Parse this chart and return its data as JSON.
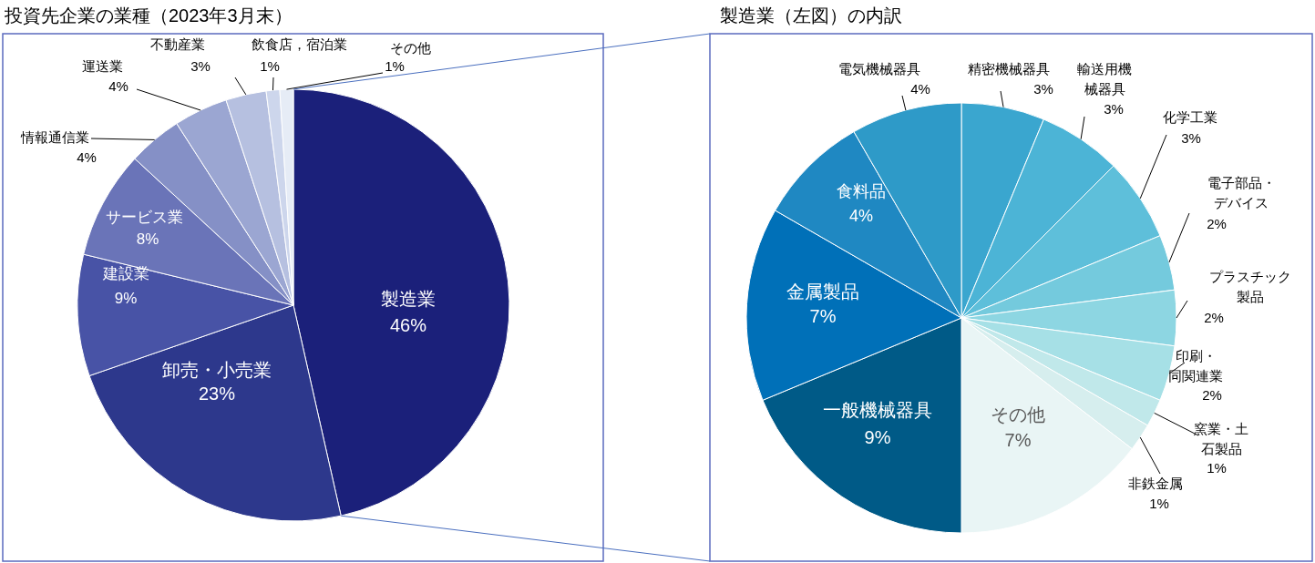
{
  "chart_data": [
    {
      "type": "pie",
      "title": "投資先企業の業種（2023年3月末）",
      "categories": [
        "製造業",
        "卸売・小売業",
        "建設業",
        "サービス業",
        "情報通信業",
        "運送業",
        "不動産業",
        "飲食店，宿泊業",
        "その他"
      ],
      "values": [
        46,
        23,
        9,
        8,
        4,
        4,
        3,
        1,
        1
      ],
      "value_labels": [
        "46%",
        "23%",
        "9%",
        "8%",
        "4%",
        "4%",
        "3%",
        "1%",
        "1%"
      ],
      "colors": [
        "#1b207a",
        "#2d388c",
        "#4853a6",
        "#6a74b8",
        "#8590c6",
        "#9ba6d2",
        "#b6c0e0",
        "#cdd6ec",
        "#e6ecf6"
      ]
    },
    {
      "type": "pie",
      "title": "製造業（左図）の内訳",
      "categories": [
        "精密機械器具",
        "輸送用機械器具",
        "化学工業",
        "電子部品・デバイス",
        "プラスチック製品",
        "印刷・同関連業",
        "窯業・土石製品",
        "非鉄金属",
        "その他",
        "一般機械器具",
        "金属製品",
        "食料品",
        "電気機械器具"
      ],
      "values": [
        3,
        3,
        3,
        2,
        2,
        2,
        1,
        1,
        7,
        9,
        7,
        4,
        4
      ],
      "value_labels": [
        "3%",
        "3%",
        "3%",
        "2%",
        "2%",
        "2%",
        "1%",
        "1%",
        "7%",
        "9%",
        "7%",
        "4%",
        "4%"
      ],
      "colors": [
        "#3aa6cf",
        "#4cb4d6",
        "#5ebfda",
        "#74cadd",
        "#8dd6e2",
        "#a6e0e6",
        "#c0e8ea",
        "#d6eeee",
        "#e9f5f5",
        "#005a87",
        "#0070b8",
        "#1f88c2",
        "#2e9ac8"
      ]
    }
  ]
}
